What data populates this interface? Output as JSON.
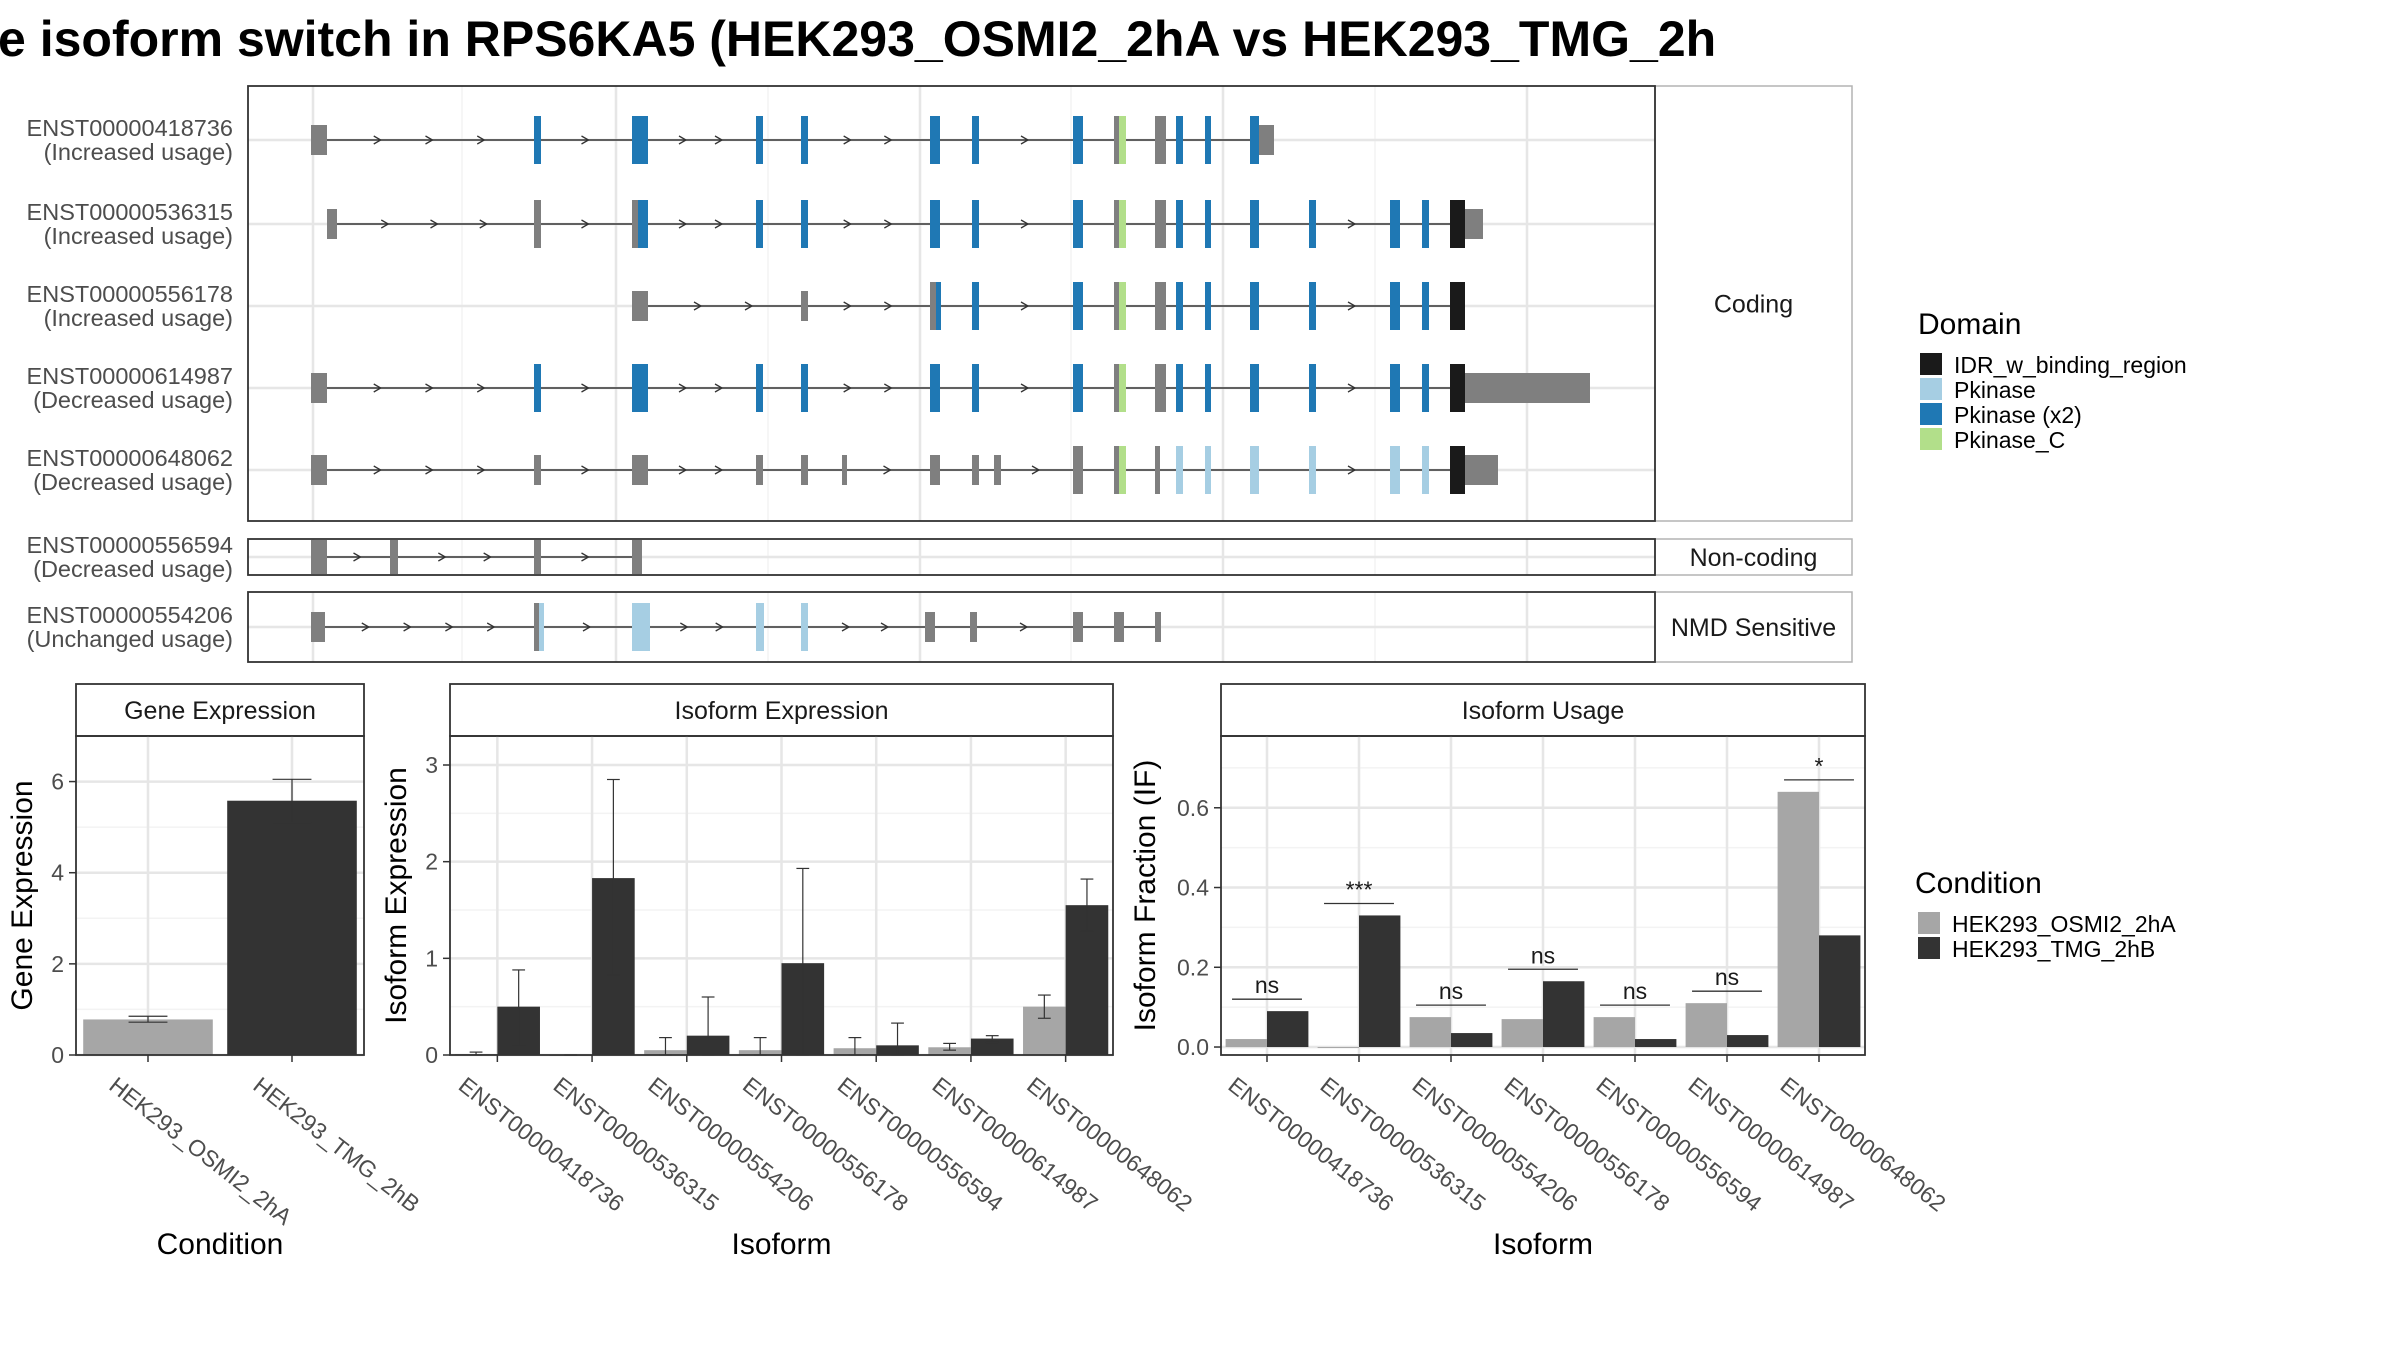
{
  "title": "e isoform switch in RPS6KA5 (HEK293_OSMI2_2hA vs HEK293_TMG_2h",
  "colors": {
    "idr": "#1a1a1a",
    "pkinase": "#a6cee3",
    "pkinase_x2": "#1f78b4",
    "pkinase_c": "#b2df8a",
    "exon_grey": "#7f7f7f",
    "cond_a": "#a6a6a6",
    "cond_b": "#333333"
  },
  "structure": {
    "groups": [
      {
        "label": "Coding",
        "rows": [
          {
            "id": "ENST00000418736",
            "usage": "(Increased usage)"
          },
          {
            "id": "ENST00000536315",
            "usage": "(Increased usage)"
          },
          {
            "id": "ENST00000556178",
            "usage": "(Increased usage)"
          },
          {
            "id": "ENST00000614987",
            "usage": "(Decreased usage)"
          },
          {
            "id": "ENST00000648062",
            "usage": "(Decreased usage)"
          }
        ]
      },
      {
        "label": "Non-coding",
        "rows": [
          {
            "id": "ENST00000556594",
            "usage": "(Decreased usage)"
          }
        ]
      },
      {
        "label": "NMD Sensitive",
        "rows": [
          {
            "id": "ENST00000554206",
            "usage": "(Unchanged usage)"
          }
        ]
      }
    ]
  },
  "domain_legend": {
    "title": "Domain",
    "items": [
      {
        "label": "IDR_w_binding_region",
        "color": "#1a1a1a"
      },
      {
        "label": "Pkinase",
        "color": "#a6cee3"
      },
      {
        "label": "Pkinase (x2)",
        "color": "#1f78b4"
      },
      {
        "label": "Pkinase_C",
        "color": "#b2df8a"
      }
    ]
  },
  "condition_legend": {
    "title": "Condition",
    "items": [
      {
        "label": "HEK293_OSMI2_2hA",
        "color": "#a6a6a6"
      },
      {
        "label": "HEK293_TMG_2hB",
        "color": "#333333"
      }
    ]
  },
  "chart_data": [
    {
      "type": "bar",
      "title": "Gene Expression",
      "xlabel": "Condition",
      "ylabel": "Gene Expression",
      "ylim": [
        0,
        7
      ],
      "yticks": [
        0,
        2,
        4,
        6
      ],
      "categories": [
        "HEK293_OSMI2_2hA",
        "HEK293_TMG_2hB"
      ],
      "values": [
        0.78,
        5.58
      ],
      "errors": [
        [
          0.72,
          0.85
        ],
        [
          5.1,
          6.05
        ]
      ]
    },
    {
      "type": "bar",
      "title": "Isoform Expression",
      "xlabel": "Isoform",
      "ylabel": "Isoform Expression",
      "ylim": [
        0,
        3.3
      ],
      "yticks": [
        0,
        1,
        2,
        3
      ],
      "categories": [
        "ENST00000418736",
        "ENST00000536315",
        "ENST00000554206",
        "ENST00000556178",
        "ENST00000556594",
        "ENST00000614987",
        "ENST00000648062"
      ],
      "series": [
        {
          "name": "HEK293_OSMI2_2hA",
          "values": [
            0.01,
            0.0,
            0.05,
            0.05,
            0.07,
            0.08,
            0.5
          ],
          "errors": [
            [
              0.0,
              0.03
            ],
            [
              0.0,
              0.0
            ],
            [
              0.0,
              0.18
            ],
            [
              0.0,
              0.18
            ],
            [
              0.0,
              0.18
            ],
            [
              0.05,
              0.12
            ],
            [
              0.38,
              0.62
            ]
          ]
        },
        {
          "name": "HEK293_TMG_2hB",
          "values": [
            0.5,
            1.83,
            0.2,
            0.95,
            0.1,
            0.17,
            1.55
          ],
          "errors": [
            [
              0.1,
              0.88
            ],
            [
              0.83,
              2.85
            ],
            [
              0.0,
              0.6
            ],
            [
              0.0,
              1.93
            ],
            [
              0.0,
              0.33
            ],
            [
              0.13,
              0.2
            ],
            [
              1.28,
              1.82
            ]
          ]
        }
      ]
    },
    {
      "type": "bar",
      "title": "Isoform Usage",
      "xlabel": "Isoform",
      "ylabel": "Isoform Fraction (IF)",
      "ylim": [
        -0.02,
        0.78
      ],
      "yticks": [
        0.0,
        0.2,
        0.4,
        0.6
      ],
      "ytick_labels": [
        "0.0",
        "0.2",
        "0.4",
        "0.6"
      ],
      "categories": [
        "ENST00000418736",
        "ENST00000536315",
        "ENST00000554206",
        "ENST00000556178",
        "ENST00000556594",
        "ENST00000614987",
        "ENST00000648062"
      ],
      "series": [
        {
          "name": "HEK293_OSMI2_2hA",
          "values": [
            0.02,
            0.0,
            0.075,
            0.07,
            0.075,
            0.11,
            0.64
          ]
        },
        {
          "name": "HEK293_TMG_2hB",
          "values": [
            0.09,
            0.33,
            0.035,
            0.165,
            0.02,
            0.03,
            0.28
          ]
        }
      ],
      "significance": [
        "ns",
        "***",
        "ns",
        "ns",
        "ns",
        "ns",
        "*"
      ]
    }
  ]
}
